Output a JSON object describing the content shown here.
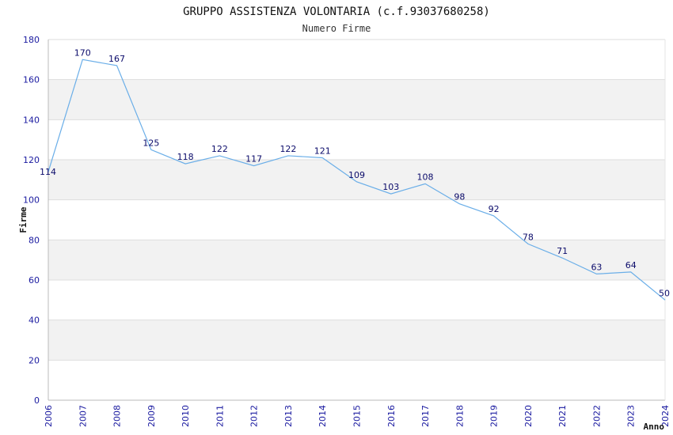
{
  "chart_data": {
    "type": "line",
    "title": "GRUPPO ASSISTENZA VOLONTARIA (c.f.93037680258)",
    "subtitle": "Numero Firme",
    "xlabel": "Anno",
    "ylabel": "Firme",
    "categories": [
      "2006",
      "2007",
      "2008",
      "2009",
      "2010",
      "2011",
      "2012",
      "2013",
      "2014",
      "2015",
      "2016",
      "2017",
      "2018",
      "2019",
      "2020",
      "2021",
      "2022",
      "2023",
      "2024"
    ],
    "series": [
      {
        "values": [
          114,
          170,
          167,
          125,
          118,
          122,
          117,
          122,
          121,
          109,
          103,
          108,
          98,
          92,
          78,
          71,
          63,
          64,
          50
        ]
      }
    ],
    "ylim": [
      0,
      180
    ],
    "yticks": [
      0,
      20,
      40,
      60,
      80,
      100,
      120,
      140,
      160,
      180
    ],
    "grid": true,
    "colors": {
      "line": "#6aaee8",
      "band": "#f2f2f2",
      "tick_text": "#1a1aa0",
      "label_text": "#0a0a6a",
      "axis": "#bbbbbb"
    }
  }
}
